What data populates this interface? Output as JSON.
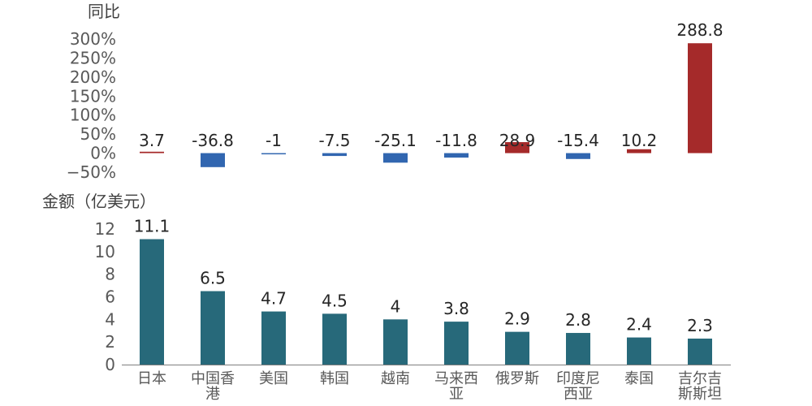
{
  "chart_data": [
    {
      "type": "bar",
      "ylabel": "同比",
      "categories": [
        "日本",
        "中国香港",
        "美国",
        "韩国",
        "越南",
        "马来西亚",
        "俄罗斯",
        "印度尼西亚",
        "泰国",
        "吉尔吉斯斯坦"
      ],
      "values": [
        3.7,
        -36.8,
        -1,
        -7.5,
        -25.1,
        -11.8,
        28.9,
        -15.4,
        10.2,
        288.8
      ],
      "ylim": [
        -50,
        300
      ],
      "yticks": [
        -50,
        0,
        50,
        100,
        150,
        200,
        250,
        300
      ],
      "ytick_labels": [
        "−50%",
        "0%",
        "50%",
        "100%",
        "150%",
        "200%",
        "250%",
        "300%"
      ],
      "data_labels": [
        "3.7",
        "-36.8",
        "-1",
        "-7.5",
        "-25.1",
        "-11.8",
        "28.9",
        "-15.4",
        "10.2",
        "288.8"
      ],
      "colors": {
        "positive": "#a52a2a",
        "negative": "#3166b0"
      },
      "grid": false
    },
    {
      "type": "bar",
      "ylabel": "金额（亿美元）",
      "categories": [
        "日本",
        "中国香港",
        "美国",
        "韩国",
        "越南",
        "马来西亚",
        "俄罗斯",
        "印度尼西亚",
        "泰国",
        "吉尔吉斯斯坦"
      ],
      "category_lines": [
        [
          "日本"
        ],
        [
          "中国香",
          "港"
        ],
        [
          "美国"
        ],
        [
          "韩国"
        ],
        [
          "越南"
        ],
        [
          "马来西",
          "亚"
        ],
        [
          "俄罗斯"
        ],
        [
          "印度尼",
          "西亚"
        ],
        [
          "泰国"
        ],
        [
          "吉尔吉",
          "斯斯坦"
        ]
      ],
      "values": [
        11.1,
        6.5,
        4.7,
        4.5,
        4,
        3.8,
        2.9,
        2.8,
        2.4,
        2.3
      ],
      "ylim": [
        0,
        12
      ],
      "yticks": [
        0,
        2,
        4,
        6,
        8,
        10,
        12
      ],
      "data_labels": [
        "11.1",
        "6.5",
        "4.7",
        "4.5",
        "4",
        "3.8",
        "2.9",
        "2.8",
        "2.4",
        "2.3"
      ],
      "colors": {
        "bar": "#27697a",
        "axis": "#7f7f7f"
      },
      "grid": false
    }
  ]
}
